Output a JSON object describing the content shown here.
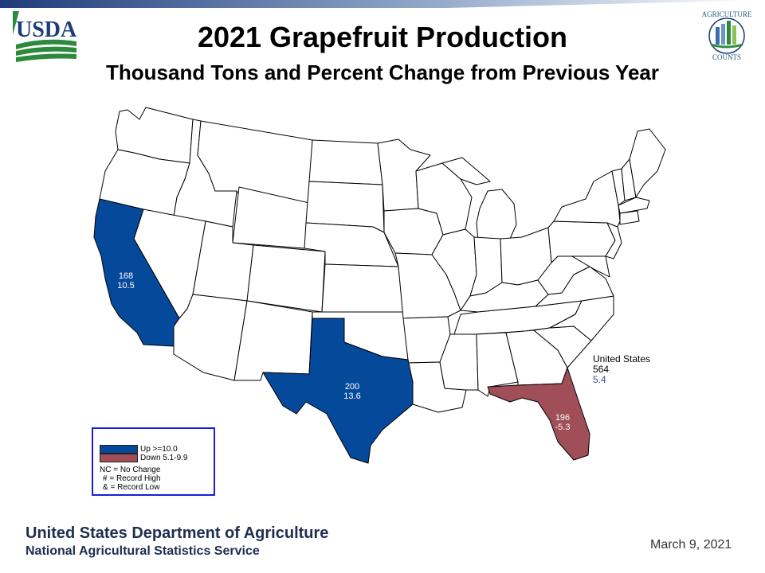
{
  "header": {
    "title": "2021 Grapefruit Production",
    "subtitle": "Thousand Tons and Percent Change from Previous Year"
  },
  "logos": {
    "usda_text": "USDA",
    "agriculture_counts": [
      "AGRICULTURE",
      "COUNTS"
    ]
  },
  "colors": {
    "up": "#054a9a",
    "down": "#a04e58",
    "neutral": "#ffffff",
    "border": "#000000",
    "accent_green": "#2d8a3c",
    "accent_blue": "#1f3c7a"
  },
  "map": {
    "states": [
      {
        "name": "California",
        "value": "168",
        "change": "10.5",
        "category": "up"
      },
      {
        "name": "Texas",
        "value": "200",
        "change": "13.6",
        "category": "up"
      },
      {
        "name": "Florida",
        "value": "196",
        "change": "-5.3",
        "category": "down"
      }
    ],
    "united_states": {
      "label": "United States",
      "value": "564",
      "change": "5.4"
    }
  },
  "legend": {
    "items": [
      {
        "label": "Up >=10.0",
        "category": "up"
      },
      {
        "label": "Down 5.1-9.9",
        "category": "down"
      }
    ],
    "notes": [
      "NC = No Change",
      "# = Record High",
      "& = Record Low"
    ]
  },
  "footer": {
    "agency": "United States Department of Agriculture",
    "service": "National Agricultural Statistics Service",
    "date": "March 9, 2021"
  }
}
